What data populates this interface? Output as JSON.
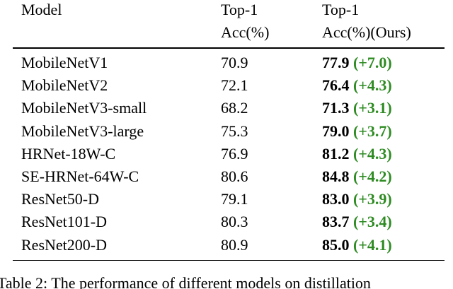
{
  "table": {
    "header": [
      [
        "Model"
      ],
      [
        "Top-1",
        "Acc(%)"
      ],
      [
        "Top-1",
        "Acc(%)(Ours)"
      ]
    ],
    "rows": [
      {
        "model": "MobileNetV1",
        "baseline": "70.9",
        "ours": "77.9",
        "gain": "(+7.0)"
      },
      {
        "model": "MobileNetV2",
        "baseline": "72.1",
        "ours": "76.4",
        "gain": "(+4.3)"
      },
      {
        "model": "MobileNetV3-small",
        "baseline": "68.2",
        "ours": "71.3",
        "gain": "(+3.1)"
      },
      {
        "model": "MobileNetV3-large",
        "baseline": "75.3",
        "ours": "79.0",
        "gain": "(+3.7)"
      },
      {
        "model": "HRNet-18W-C",
        "baseline": "76.9",
        "ours": "81.2",
        "gain": "(+4.3)"
      },
      {
        "model": "SE-HRNet-64W-C",
        "baseline": "80.6",
        "ours": "84.8",
        "gain": "(+4.2)"
      },
      {
        "model": "ResNet50-D",
        "baseline": "79.1",
        "ours": "83.0",
        "gain": "(+3.9)"
      },
      {
        "model": "ResNet101-D",
        "baseline": "80.3",
        "ours": "83.7",
        "gain": "(+3.4)"
      },
      {
        "model": "ResNet200-D",
        "baseline": "80.9",
        "ours": "85.0",
        "gain": "(+4.1)"
      }
    ],
    "caption": "Table 2: The performance of different models on distillation"
  }
}
